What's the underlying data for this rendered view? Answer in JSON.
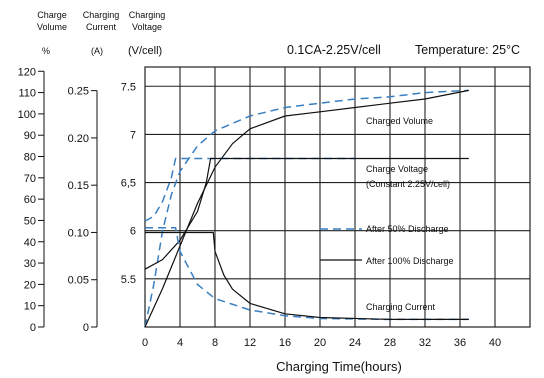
{
  "chart_data": {
    "type": "line",
    "title": "0.1CA-2.25V/cell",
    "temperature_label": "Temperature: 25°C",
    "xlabel": "Charging Time(hours)",
    "x_ticks": [
      0,
      4,
      8,
      12,
      16,
      20,
      24,
      28,
      32,
      36,
      40
    ],
    "xlim": [
      0,
      44
    ],
    "axes": {
      "volume": {
        "header": [
          "Charge",
          "Volume"
        ],
        "unit": "%",
        "ticks": [
          0,
          10,
          20,
          30,
          40,
          50,
          60,
          70,
          80,
          90,
          100,
          110,
          120
        ],
        "range": [
          0,
          122
        ]
      },
      "current": {
        "header": [
          "Charging",
          "Current"
        ],
        "unit": "(A)",
        "ticks": [
          0,
          0.05,
          0.1,
          0.15,
          0.2,
          0.25
        ],
        "tick_labels": [
          "0",
          "0.05",
          "0.10",
          "0.15",
          "0.20",
          "0.25"
        ],
        "range": [
          0,
          0.275
        ]
      },
      "voltage": {
        "header": [
          "Charging",
          "Voltage"
        ],
        "unit": "(V/cell)",
        "ticks": [
          5.5,
          6,
          6.5,
          7,
          7.5
        ],
        "tick_labels": [
          "5.5",
          "6",
          "6,5",
          "7",
          "7.5"
        ],
        "range": [
          5,
          7.7
        ]
      }
    },
    "annotations": {
      "charged_volume": "Charged Volume",
      "charge_voltage": "Charge Voltage",
      "charge_voltage_note": "(Constant 2.25V/cell)",
      "charging_current": "Charging Current"
    },
    "legend": [
      {
        "label": "After 50% Discharge",
        "style": "dashed",
        "color": "#3a7fc1"
      },
      {
        "label": "After 100% Discharge",
        "style": "solid",
        "color": "#111111"
      }
    ],
    "series": [
      {
        "name": "After 50% Discharge",
        "quantity": "charged volume",
        "axis": "volume",
        "style": "dashed",
        "color": "#3a7fc1",
        "points": [
          [
            0,
            0
          ],
          [
            1,
            20
          ],
          [
            2,
            45
          ],
          [
            3,
            62
          ],
          [
            4,
            73
          ],
          [
            6,
            85
          ],
          [
            8,
            92
          ],
          [
            12,
            99
          ],
          [
            16,
            103
          ],
          [
            20,
            105
          ],
          [
            24,
            107
          ],
          [
            28,
            108
          ],
          [
            32,
            110
          ],
          [
            37,
            111
          ]
        ]
      },
      {
        "name": "After 100% Discharge",
        "quantity": "charged volume",
        "axis": "volume",
        "style": "solid",
        "color": "#111111",
        "points": [
          [
            0,
            0
          ],
          [
            2,
            18
          ],
          [
            4,
            38
          ],
          [
            6,
            58
          ],
          [
            8,
            75
          ],
          [
            10,
            86
          ],
          [
            12,
            93
          ],
          [
            16,
            99
          ],
          [
            20,
            101
          ],
          [
            24,
            103
          ],
          [
            28,
            105
          ],
          [
            32,
            107
          ],
          [
            37,
            111
          ]
        ]
      },
      {
        "name": "After 50% Discharge",
        "quantity": "charging voltage",
        "axis": "voltage",
        "style": "dashed",
        "color": "#3a7fc1",
        "points": [
          [
            0,
            6.1
          ],
          [
            1,
            6.15
          ],
          [
            2,
            6.3
          ],
          [
            3,
            6.55
          ],
          [
            3.5,
            6.75
          ],
          [
            24,
            6.75
          ]
        ]
      },
      {
        "name": "After 100% Discharge",
        "quantity": "charging voltage",
        "axis": "voltage",
        "style": "solid",
        "color": "#111111",
        "points": [
          [
            0,
            5.6
          ],
          [
            2,
            5.7
          ],
          [
            4,
            5.9
          ],
          [
            6,
            6.2
          ],
          [
            7,
            6.5
          ],
          [
            7.5,
            6.75
          ],
          [
            37,
            6.75
          ]
        ]
      },
      {
        "name": "After 50% Discharge",
        "quantity": "charging current",
        "axis": "current",
        "style": "dashed",
        "color": "#3a7fc1",
        "points": [
          [
            0,
            0.105
          ],
          [
            3.5,
            0.105
          ],
          [
            4,
            0.08
          ],
          [
            6,
            0.045
          ],
          [
            8,
            0.03
          ],
          [
            12,
            0.018
          ],
          [
            16,
            0.012
          ],
          [
            20,
            0.009
          ],
          [
            28,
            0.008
          ],
          [
            37,
            0.008
          ]
        ]
      },
      {
        "name": "After 100% Discharge",
        "quantity": "charging current",
        "axis": "current",
        "style": "solid",
        "color": "#111111",
        "points": [
          [
            0,
            0.1
          ],
          [
            7.8,
            0.1
          ],
          [
            8,
            0.08
          ],
          [
            9,
            0.055
          ],
          [
            10,
            0.04
          ],
          [
            12,
            0.025
          ],
          [
            16,
            0.014
          ],
          [
            20,
            0.01
          ],
          [
            28,
            0.008
          ],
          [
            37,
            0.008
          ]
        ]
      }
    ]
  }
}
